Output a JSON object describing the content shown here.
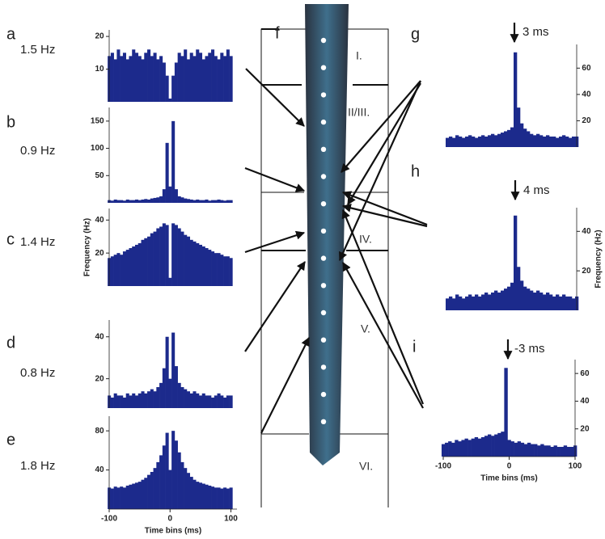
{
  "chart_data": [
    {
      "type": "bar",
      "panel_label": "a",
      "annotation": "1.5 Hz",
      "color": "#1c2a8c",
      "x": [
        -100,
        -95,
        -90,
        -85,
        -80,
        -75,
        -70,
        -65,
        -60,
        -55,
        -50,
        -45,
        -40,
        -35,
        -30,
        -25,
        -20,
        -15,
        -10,
        -5,
        0,
        5,
        10,
        15,
        20,
        25,
        30,
        35,
        40,
        45,
        50,
        55,
        60,
        65,
        70,
        75,
        80,
        85,
        90,
        95,
        100
      ],
      "values": [
        14,
        15,
        13,
        16,
        14,
        15,
        13,
        14,
        16,
        15,
        14,
        13,
        15,
        16,
        14,
        15,
        13,
        14,
        12,
        8,
        1,
        8,
        12,
        15,
        14,
        16,
        13,
        15,
        14,
        16,
        15,
        13,
        14,
        15,
        16,
        14,
        13,
        15,
        14,
        16,
        14
      ],
      "xlim": [
        -100,
        110
      ],
      "ylim": [
        0,
        22
      ],
      "yticks": [
        10,
        20
      ]
    },
    {
      "type": "bar",
      "panel_label": "b",
      "annotation": "0.9 Hz",
      "color": "#1c2a8c",
      "x": [
        -100,
        -95,
        -90,
        -85,
        -80,
        -75,
        -70,
        -65,
        -60,
        -55,
        -50,
        -45,
        -40,
        -35,
        -30,
        -25,
        -20,
        -15,
        -10,
        -5,
        0,
        5,
        10,
        15,
        20,
        25,
        30,
        35,
        40,
        45,
        50,
        55,
        60,
        65,
        70,
        75,
        80,
        85,
        90,
        95,
        100
      ],
      "values": [
        5,
        4,
        6,
        5,
        5,
        4,
        6,
        5,
        5,
        6,
        5,
        6,
        7,
        6,
        8,
        9,
        10,
        12,
        25,
        110,
        30,
        150,
        25,
        12,
        10,
        8,
        7,
        6,
        5,
        6,
        5,
        5,
        6,
        4,
        5,
        5,
        6,
        5,
        4,
        5,
        5
      ],
      "xlim": [
        -100,
        110
      ],
      "ylim": [
        0,
        175
      ],
      "yticks": [
        50,
        100,
        150
      ]
    },
    {
      "type": "bar",
      "panel_label": "c",
      "annotation": "1.4 Hz",
      "color": "#1c2a8c",
      "ylabel": "Frequency (Hz)",
      "x": [
        -100,
        -95,
        -90,
        -85,
        -80,
        -75,
        -70,
        -65,
        -60,
        -55,
        -50,
        -45,
        -40,
        -35,
        -30,
        -25,
        -20,
        -15,
        -10,
        -5,
        0,
        5,
        10,
        15,
        20,
        25,
        30,
        35,
        40,
        45,
        50,
        55,
        60,
        65,
        70,
        75,
        80,
        85,
        90,
        95,
        100
      ],
      "values": [
        17,
        18,
        19,
        20,
        19,
        21,
        22,
        23,
        24,
        25,
        26,
        28,
        29,
        30,
        32,
        33,
        35,
        36,
        38,
        37,
        5,
        38,
        37,
        35,
        33,
        31,
        30,
        28,
        27,
        26,
        25,
        24,
        23,
        22,
        21,
        20,
        20,
        19,
        18,
        18,
        17
      ],
      "xlim": [
        -100,
        110
      ],
      "ylim": [
        0,
        47
      ],
      "yticks": [
        20,
        40
      ]
    },
    {
      "type": "bar",
      "panel_label": "d",
      "annotation": "0.8 Hz",
      "color": "#1c2a8c",
      "x": [
        -100,
        -95,
        -90,
        -85,
        -80,
        -75,
        -70,
        -65,
        -60,
        -55,
        -50,
        -45,
        -40,
        -35,
        -30,
        -25,
        -20,
        -15,
        -10,
        -5,
        0,
        5,
        10,
        15,
        20,
        25,
        30,
        35,
        40,
        45,
        50,
        55,
        60,
        65,
        70,
        75,
        80,
        85,
        90,
        95,
        100
      ],
      "values": [
        12,
        11,
        13,
        12,
        12,
        11,
        13,
        12,
        13,
        12,
        13,
        14,
        13,
        14,
        15,
        14,
        16,
        18,
        25,
        40,
        20,
        42,
        26,
        18,
        16,
        15,
        14,
        13,
        14,
        13,
        12,
        13,
        12,
        12,
        11,
        12,
        13,
        12,
        11,
        12,
        12
      ],
      "xlim": [
        -100,
        110
      ],
      "ylim": [
        6,
        48
      ],
      "yticks": [
        20,
        40
      ]
    },
    {
      "type": "bar",
      "panel_label": "e",
      "annotation": "1.8 Hz",
      "color": "#1c2a8c",
      "xlabel": "Time bins (ms)",
      "x": [
        -100,
        -95,
        -90,
        -85,
        -80,
        -75,
        -70,
        -65,
        -60,
        -55,
        -50,
        -45,
        -40,
        -35,
        -30,
        -25,
        -20,
        -15,
        -10,
        -5,
        0,
        5,
        10,
        15,
        20,
        25,
        30,
        35,
        40,
        45,
        50,
        55,
        60,
        65,
        70,
        75,
        80,
        85,
        90,
        95,
        100
      ],
      "values": [
        22,
        21,
        23,
        22,
        23,
        22,
        24,
        25,
        26,
        27,
        28,
        30,
        32,
        35,
        38,
        42,
        48,
        55,
        65,
        78,
        40,
        80,
        70,
        58,
        48,
        42,
        37,
        33,
        30,
        28,
        27,
        26,
        25,
        24,
        23,
        22,
        22,
        21,
        22,
        21,
        22
      ],
      "xlim": [
        -100,
        110
      ],
      "xticks": [
        -100,
        0,
        100
      ],
      "ylim": [
        0,
        95
      ],
      "yticks": [
        40,
        80
      ]
    },
    {
      "type": "bar",
      "panel_label": "g",
      "annotation": "3 ms",
      "color": "#1c2a8c",
      "x": [
        -100,
        -95,
        -90,
        -85,
        -80,
        -75,
        -70,
        -65,
        -60,
        -55,
        -50,
        -45,
        -40,
        -35,
        -30,
        -25,
        -20,
        -15,
        -10,
        -5,
        0,
        5,
        10,
        15,
        20,
        25,
        30,
        35,
        40,
        45,
        50,
        55,
        60,
        65,
        70,
        75,
        80,
        85,
        90,
        95,
        100
      ],
      "values": [
        7,
        8,
        7,
        9,
        8,
        7,
        8,
        9,
        8,
        7,
        8,
        9,
        8,
        9,
        10,
        9,
        10,
        11,
        12,
        13,
        15,
        72,
        30,
        18,
        14,
        12,
        10,
        9,
        10,
        9,
        8,
        9,
        8,
        8,
        7,
        8,
        9,
        8,
        7,
        8,
        8
      ],
      "xlim": [
        -100,
        100
      ],
      "ylim": [
        0,
        78
      ],
      "yticks": [
        20,
        40,
        60
      ]
    },
    {
      "type": "bar",
      "panel_label": "h",
      "annotation": "4 ms",
      "color": "#1c2a8c",
      "ylabel": "Frequency (Hz)",
      "x": [
        -100,
        -95,
        -90,
        -85,
        -80,
        -75,
        -70,
        -65,
        -60,
        -55,
        -50,
        -45,
        -40,
        -35,
        -30,
        -25,
        -20,
        -15,
        -10,
        -5,
        0,
        5,
        10,
        15,
        20,
        25,
        30,
        35,
        40,
        45,
        50,
        55,
        60,
        65,
        70,
        75,
        80,
        85,
        90,
        95,
        100
      ],
      "values": [
        6,
        7,
        6,
        8,
        7,
        6,
        7,
        8,
        7,
        8,
        7,
        8,
        9,
        8,
        9,
        10,
        9,
        10,
        11,
        12,
        14,
        48,
        22,
        15,
        12,
        11,
        10,
        9,
        10,
        9,
        8,
        9,
        8,
        7,
        8,
        7,
        8,
        7,
        7,
        6,
        7
      ],
      "xlim": [
        -100,
        100
      ],
      "ylim": [
        0,
        52
      ],
      "yticks": [
        20,
        40
      ]
    },
    {
      "type": "bar",
      "panel_label": "i",
      "annotation": "-3 ms",
      "color": "#1c2a8c",
      "xlabel": "Time bins (ms)",
      "x": [
        -100,
        -95,
        -90,
        -85,
        -80,
        -75,
        -70,
        -65,
        -60,
        -55,
        -50,
        -45,
        -40,
        -35,
        -30,
        -25,
        -20,
        -15,
        -10,
        -5,
        0,
        5,
        10,
        15,
        20,
        25,
        30,
        35,
        40,
        45,
        50,
        55,
        60,
        65,
        70,
        75,
        80,
        85,
        90,
        95,
        100
      ],
      "values": [
        9,
        10,
        11,
        10,
        12,
        11,
        12,
        13,
        12,
        13,
        14,
        13,
        14,
        15,
        16,
        15,
        16,
        17,
        18,
        64,
        12,
        11,
        10,
        11,
        10,
        9,
        10,
        9,
        9,
        8,
        9,
        8,
        8,
        7,
        8,
        7,
        7,
        8,
        7,
        7,
        8
      ],
      "xlim": [
        -100,
        100
      ],
      "xticks": [
        -100,
        0,
        100
      ],
      "ylim": [
        0,
        70
      ],
      "yticks": [
        20,
        40,
        60
      ]
    }
  ],
  "diagram": {
    "label": "f",
    "layers": [
      "I.",
      "II/III.",
      "IV.",
      "V.",
      "VI."
    ]
  }
}
